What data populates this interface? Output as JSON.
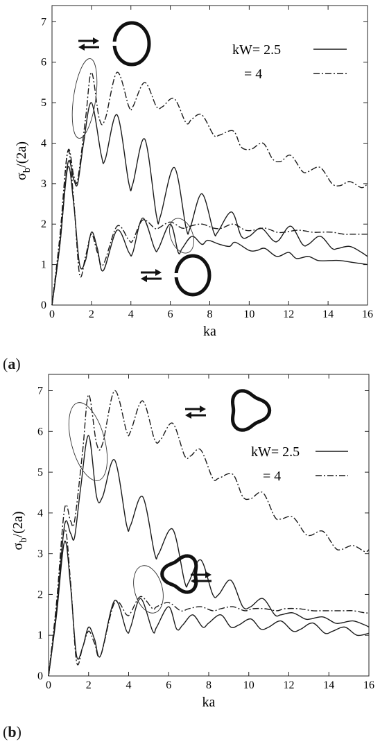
{
  "chart_data": [
    {
      "type": "line",
      "panel": "a",
      "panel_label": "a",
      "xlabel": "ka",
      "ylabel_main": "σ",
      "ylabel_sub": "b",
      "ylabel_rest": "/(2a)",
      "xlim": [
        0,
        16
      ],
      "ylim": [
        0,
        7.4
      ],
      "xticks": [
        0,
        2,
        4,
        6,
        8,
        10,
        12,
        14,
        16
      ],
      "yticks": [
        0,
        1,
        2,
        3,
        4,
        5,
        6,
        7
      ],
      "legend": [
        {
          "label": "kW= 2.5",
          "style": "solid"
        },
        {
          "label": "= 4",
          "style": "dashdot"
        }
      ],
      "legend_placement": "top-right",
      "insets": [
        {
          "shape": "circle-with-gap",
          "arrows": "left-of-shape",
          "near": [
            4.5,
            6.5
          ]
        },
        {
          "shape": "circle-with-gap",
          "arrows": "left-of-shape",
          "near": [
            7.5,
            0.9
          ]
        }
      ],
      "highlight_ellipses": [
        {
          "cx": 1.6,
          "cy": 5.0
        },
        {
          "cx": 6.3,
          "cy": 2.0
        }
      ],
      "series": [
        {
          "style": "solid",
          "branch": "upper",
          "x": [
            0,
            0.4,
            0.8,
            1.1,
            1.3,
            1.6,
            2.0,
            2.5,
            2.7,
            3.3,
            3.9,
            4.1,
            4.7,
            5.3,
            5.5,
            6.2,
            6.8,
            7.0,
            7.6,
            8.2,
            8.4,
            9.1,
            9.6,
            10.0,
            10.6,
            11.2,
            11.5,
            12.1,
            12.7,
            13.0,
            13.6,
            14.2,
            14.5,
            15.1,
            15.7,
            16.0
          ],
          "y": [
            0,
            1.5,
            3.5,
            3.1,
            3.0,
            4.0,
            5.0,
            3.7,
            3.6,
            4.7,
            3.0,
            3.0,
            4.1,
            2.2,
            2.2,
            3.4,
            1.9,
            1.9,
            2.75,
            1.8,
            1.8,
            2.3,
            1.7,
            1.7,
            1.9,
            1.6,
            1.6,
            1.95,
            1.5,
            1.5,
            1.7,
            1.4,
            1.4,
            1.45,
            1.3,
            1.2
          ]
        },
        {
          "style": "solid",
          "branch": "lower",
          "x": [
            0,
            0.4,
            0.8,
            1.1,
            1.4,
            1.7,
            2.0,
            2.3,
            2.6,
            3.3,
            3.9,
            4.1,
            4.6,
            5.2,
            5.4,
            6.0,
            6.4,
            6.6,
            7.1,
            7.6,
            7.9,
            8.5,
            9.0,
            9.3,
            10.0,
            10.4,
            10.8,
            11.4,
            12.0,
            12.4,
            13.0,
            13.5,
            14.1,
            14.6,
            15.3,
            16.0
          ],
          "y": [
            0,
            1.5,
            3.4,
            2.5,
            1.0,
            1.1,
            1.8,
            1.4,
            0.85,
            1.85,
            1.3,
            1.3,
            2.15,
            1.4,
            1.4,
            2.0,
            1.3,
            1.4,
            1.7,
            1.5,
            1.6,
            1.5,
            1.45,
            1.55,
            1.35,
            1.35,
            1.4,
            1.2,
            1.3,
            1.15,
            1.2,
            1.1,
            1.1,
            1.1,
            1.05,
            1.0
          ]
        },
        {
          "style": "dashdot",
          "branch": "upper",
          "x": [
            0,
            0.4,
            0.8,
            1.1,
            1.3,
            1.7,
            2.0,
            2.4,
            2.7,
            3.3,
            3.9,
            4.1,
            4.7,
            5.3,
            5.6,
            6.2,
            6.8,
            7.1,
            7.6,
            8.2,
            8.5,
            9.2,
            9.6,
            10.1,
            10.7,
            11.2,
            11.6,
            12.1,
            12.7,
            13.0,
            13.6,
            14.2,
            14.6,
            15.1,
            15.7,
            16.0
          ],
          "y": [
            0,
            1.7,
            3.8,
            3.2,
            3.1,
            4.6,
            5.75,
            4.6,
            4.6,
            5.75,
            4.9,
            4.9,
            5.5,
            4.9,
            4.9,
            5.1,
            4.5,
            4.6,
            4.7,
            4.2,
            4.2,
            4.3,
            3.9,
            3.85,
            4.0,
            3.6,
            3.55,
            3.7,
            3.3,
            3.3,
            3.4,
            3.0,
            2.95,
            3.05,
            2.9,
            3.0
          ]
        },
        {
          "style": "dashdot",
          "branch": "lower",
          "x": [
            0,
            0.4,
            0.8,
            1.1,
            1.4,
            1.7,
            2.0,
            2.3,
            2.6,
            3.3,
            3.9,
            4.1,
            4.6,
            5.2,
            5.4,
            6.0,
            6.6,
            7.0,
            7.6,
            8.2,
            8.6,
            9.2,
            9.8,
            10.2,
            10.8,
            11.4,
            11.8,
            12.5,
            13.2,
            13.6,
            14.2,
            14.8,
            15.2,
            15.8,
            16.0
          ],
          "y": [
            0,
            1.7,
            3.8,
            2.6,
            0.75,
            1.2,
            1.75,
            1.3,
            1.0,
            1.95,
            1.6,
            1.6,
            2.1,
            1.9,
            1.9,
            2.05,
            1.9,
            1.95,
            2.0,
            1.9,
            1.9,
            2.0,
            1.85,
            1.85,
            1.9,
            1.8,
            1.8,
            1.85,
            1.8,
            1.8,
            1.8,
            1.75,
            1.75,
            1.75,
            1.75
          ]
        }
      ]
    },
    {
      "type": "line",
      "panel": "b",
      "panel_label": "b",
      "xlabel": "ka",
      "ylabel_main": "σ",
      "ylabel_sub": "b",
      "ylabel_rest": "/(2a)",
      "xlim": [
        0,
        16
      ],
      "ylim": [
        0,
        7.4
      ],
      "xticks": [
        0,
        2,
        4,
        6,
        8,
        10,
        12,
        14,
        16
      ],
      "yticks": [
        0,
        1,
        2,
        3,
        4,
        5,
        6,
        7
      ],
      "legend": [
        {
          "label": "kW= 2.5",
          "style": "solid"
        },
        {
          "label": "= 4",
          "style": "dashdot"
        }
      ],
      "legend_placement": "top-right",
      "insets": [
        {
          "shape": "trefoil-with-gap",
          "arrows": "left-of-shape",
          "near": [
            9.0,
            6.3
          ]
        },
        {
          "shape": "trefoil-with-gap",
          "arrows": "right-of-shape",
          "near": [
            6.8,
            0.7
          ]
        }
      ],
      "highlight_ellipses": [
        {
          "cx": 1.9,
          "cy": 5.2
        },
        {
          "cx": 4.8,
          "cy": 1.7
        }
      ],
      "series": [
        {
          "style": "solid",
          "branch": "upper",
          "x": [
            0,
            0.4,
            0.8,
            1.1,
            1.3,
            1.6,
            2.0,
            2.4,
            2.7,
            3.3,
            3.9,
            4.1,
            4.7,
            5.3,
            5.5,
            6.2,
            6.8,
            7.0,
            7.6,
            8.2,
            8.5,
            9.1,
            9.7,
            10.1,
            10.7,
            11.3,
            11.6,
            12.2,
            12.8,
            13.1,
            13.7,
            14.3,
            14.6,
            15.2,
            15.8,
            16.0
          ],
          "y": [
            0,
            1.6,
            3.7,
            3.5,
            3.4,
            4.6,
            5.9,
            4.4,
            4.4,
            5.3,
            3.7,
            3.7,
            4.4,
            3.0,
            3.0,
            3.6,
            2.3,
            2.3,
            2.85,
            2.0,
            2.0,
            2.35,
            1.7,
            1.7,
            1.9,
            1.5,
            1.5,
            1.55,
            1.4,
            1.4,
            1.45,
            1.3,
            1.3,
            1.35,
            1.25,
            1.2
          ]
        },
        {
          "style": "solid",
          "branch": "lower",
          "x": [
            0,
            0.4,
            0.8,
            1.1,
            1.4,
            1.7,
            2.0,
            2.3,
            2.6,
            3.3,
            3.9,
            4.1,
            4.6,
            5.2,
            5.4,
            6.0,
            6.4,
            6.7,
            7.2,
            7.7,
            8.0,
            8.6,
            9.1,
            9.5,
            10.1,
            10.6,
            11.0,
            11.6,
            12.2,
            12.6,
            13.2,
            13.8,
            14.2,
            14.8,
            15.4,
            16.0
          ],
          "y": [
            0,
            1.5,
            3.3,
            2.2,
            0.5,
            0.7,
            1.2,
            0.9,
            0.5,
            1.85,
            1.1,
            1.2,
            1.9,
            1.1,
            1.2,
            1.7,
            1.15,
            1.25,
            1.5,
            1.2,
            1.3,
            1.5,
            1.2,
            1.25,
            1.4,
            1.15,
            1.2,
            1.35,
            1.1,
            1.15,
            1.3,
            1.05,
            1.1,
            1.2,
            1.0,
            1.05
          ]
        },
        {
          "style": "dashdot",
          "branch": "upper",
          "x": [
            0,
            0.4,
            0.8,
            1.1,
            1.3,
            1.7,
            2.0,
            2.4,
            2.7,
            3.3,
            3.9,
            4.1,
            4.7,
            5.3,
            5.6,
            6.2,
            6.8,
            7.1,
            7.6,
            8.2,
            8.5,
            9.2,
            9.7,
            10.1,
            10.7,
            11.3,
            11.6,
            12.2,
            12.8,
            13.1,
            13.7,
            14.3,
            14.6,
            15.2,
            15.8,
            16.0
          ],
          "y": [
            0,
            1.8,
            4.1,
            3.8,
            3.8,
            5.5,
            6.9,
            5.7,
            5.7,
            7.0,
            6.0,
            6.0,
            6.75,
            5.8,
            5.8,
            6.2,
            5.4,
            5.4,
            5.55,
            4.85,
            4.85,
            4.95,
            4.4,
            4.35,
            4.5,
            3.9,
            3.85,
            3.9,
            3.5,
            3.45,
            3.55,
            3.15,
            3.1,
            3.2,
            3.05,
            3.1
          ]
        },
        {
          "style": "dashdot",
          "branch": "lower",
          "x": [
            0,
            0.4,
            0.8,
            1.1,
            1.4,
            1.7,
            2.0,
            2.3,
            2.6,
            3.3,
            3.9,
            4.1,
            4.6,
            5.2,
            5.4,
            6.0,
            6.6,
            7.0,
            7.6,
            8.2,
            8.6,
            9.2,
            9.8,
            10.2,
            10.8,
            11.4,
            11.8,
            12.5,
            13.2,
            13.6,
            14.2,
            14.8,
            15.2,
            15.8,
            16.0
          ],
          "y": [
            0,
            1.7,
            3.6,
            2.3,
            0.35,
            0.7,
            1.1,
            0.8,
            0.5,
            1.8,
            1.5,
            1.55,
            1.95,
            1.65,
            1.7,
            1.8,
            1.6,
            1.65,
            1.7,
            1.6,
            1.65,
            1.7,
            1.6,
            1.65,
            1.65,
            1.6,
            1.65,
            1.65,
            1.6,
            1.6,
            1.6,
            1.6,
            1.6,
            1.55,
            1.55
          ]
        }
      ]
    }
  ]
}
